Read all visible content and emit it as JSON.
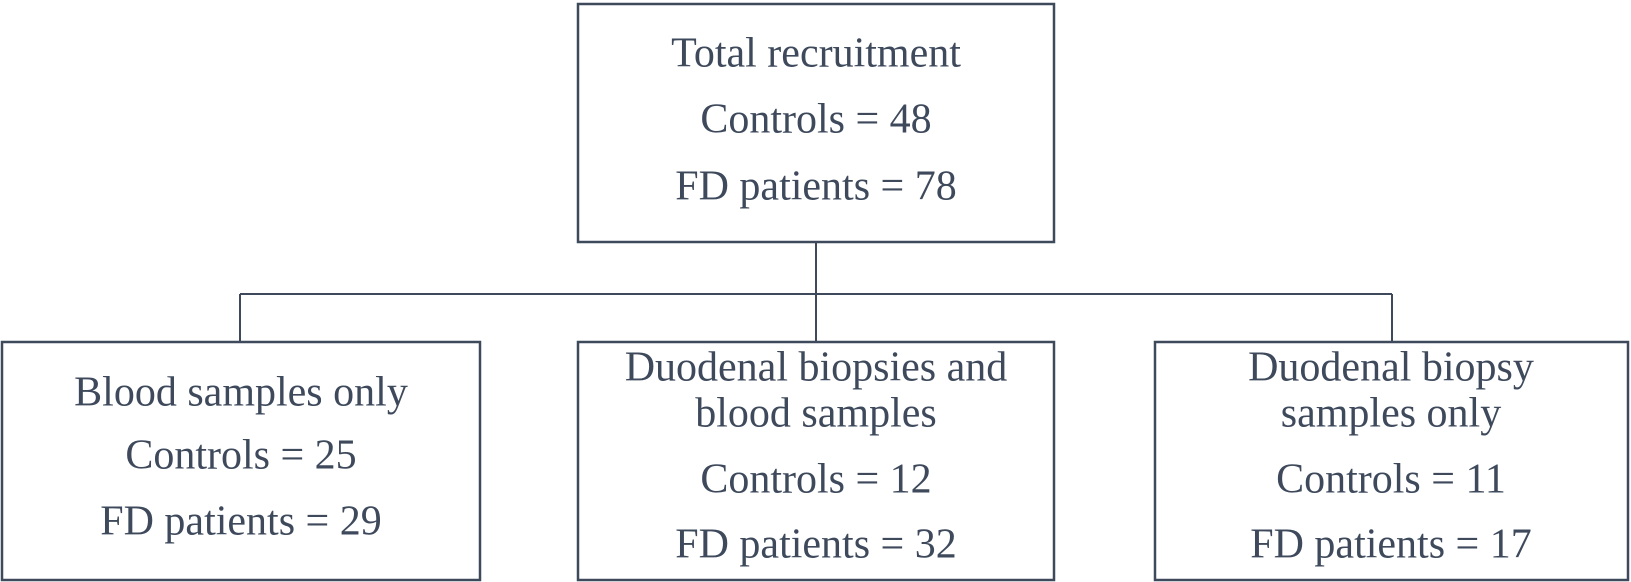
{
  "nodes": [
    {
      "lines": [
        "Total recruitment",
        "Controls = 48",
        "FD patients = 78"
      ]
    },
    {
      "lines": [
        "Blood samples only",
        "Controls = 25",
        "FD patients = 29"
      ]
    },
    {
      "lines": [
        "Duodenal biopsies and",
        "blood samples",
        "Controls = 12",
        "FD patients = 32"
      ]
    },
    {
      "lines": [
        "Duodenal biopsy",
        "samples only",
        "Controls = 11",
        "FD patients = 17"
      ]
    }
  ]
}
